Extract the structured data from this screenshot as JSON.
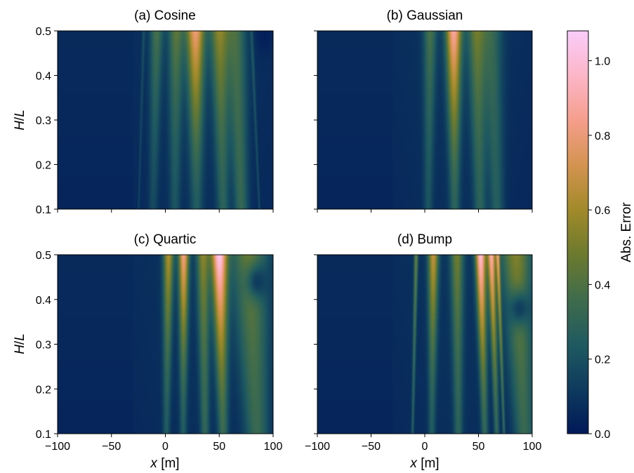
{
  "chart_data": [
    {
      "type": "heatmap",
      "title": "(a) Cosine",
      "x_ticks": [
        "−100",
        "−50",
        "0",
        "50",
        "100"
      ],
      "y_ticks": [
        "0.1",
        "0.2",
        "0.3",
        "0.4",
        "0.5"
      ],
      "xlim": [
        -100,
        100
      ],
      "ylim": [
        0.1,
        0.5
      ],
      "ylabel_var": "H",
      "ylabel_sep": "/",
      "ylabel_den": "L",
      "xlabel_var": "",
      "xlabel_unit": "",
      "bands": [
        {
          "x": -20,
          "w": 1.2,
          "top": 0.12,
          "bot": 0.08
        },
        {
          "x": -8,
          "w": 5,
          "top": 0.3,
          "bot": 0.12
        },
        {
          "x": 10,
          "w": 6,
          "top": 0.35,
          "bot": 0.15
        },
        {
          "x": 28,
          "w": 7,
          "top": 0.72,
          "bot": 0.18
        },
        {
          "x": 50,
          "w": 7,
          "top": 0.45,
          "bot": 0.22
        },
        {
          "x": 65,
          "w": 8,
          "top": 0.3,
          "bot": 0.26
        },
        {
          "x": 80,
          "w": 1.2,
          "top": 0.15,
          "bot": 0.12
        }
      ],
      "dark_spots": [
        {
          "x": 92,
          "y": 0.49,
          "r": 8
        }
      ]
    },
    {
      "type": "heatmap",
      "title": "(b) Gaussian",
      "x_ticks": [
        "−100",
        "−50",
        "0",
        "50",
        "100"
      ],
      "y_ticks": [],
      "xlim": [
        -100,
        100
      ],
      "ylim": [
        0.1,
        0.5
      ],
      "ylabel_var": "",
      "ylabel_sep": "",
      "ylabel_den": "",
      "xlabel_var": "",
      "xlabel_unit": "",
      "bands": [
        {
          "x": 5,
          "w": 5,
          "top": 0.3,
          "bot": 0.15
        },
        {
          "x": 27,
          "w": 6,
          "top": 0.8,
          "bot": 0.22
        },
        {
          "x": 48,
          "w": 7,
          "top": 0.38,
          "bot": 0.22
        },
        {
          "x": 62,
          "w": 8,
          "top": 0.25,
          "bot": 0.2
        }
      ],
      "dark_spots": []
    },
    {
      "type": "heatmap",
      "title": "(c) Quartic",
      "x_ticks": [
        "−100",
        "−50",
        "0",
        "50",
        "100"
      ],
      "y_ticks": [
        "0.1",
        "0.2",
        "0.3",
        "0.4",
        "0.5"
      ],
      "xlim": [
        -100,
        100
      ],
      "ylim": [
        0.1,
        0.5
      ],
      "ylabel_var": "H",
      "ylabel_sep": "/",
      "ylabel_den": "L",
      "xlabel_var": "x",
      "xlabel_unit": "[m]",
      "bands": [
        {
          "x": 3,
          "w": 4,
          "top": 0.55,
          "bot": 0.18
        },
        {
          "x": 17,
          "w": 4,
          "top": 0.75,
          "bot": 0.18
        },
        {
          "x": 35,
          "w": 5,
          "top": 0.45,
          "bot": 0.24
        },
        {
          "x": 50,
          "w": 6,
          "top": 0.95,
          "bot": 0.28
        },
        {
          "x": 78,
          "w": 14,
          "top": 0.4,
          "bot": 0.28
        }
      ],
      "dark_spots": [
        {
          "x": 85,
          "y": 0.44,
          "r": 10
        }
      ]
    },
    {
      "type": "heatmap",
      "title": "(d) Bump",
      "x_ticks": [
        "−100",
        "−50",
        "0",
        "50",
        "100"
      ],
      "y_ticks": [],
      "xlim": [
        -100,
        100
      ],
      "ylim": [
        0.1,
        0.5
      ],
      "ylabel_var": "",
      "ylabel_sep": "",
      "ylabel_den": "",
      "xlabel_var": "x",
      "xlabel_unit": "[m]",
      "bands": [
        {
          "x": -8,
          "w": 1.5,
          "top": 0.4,
          "bot": 0.2
        },
        {
          "x": 8,
          "w": 4,
          "top": 0.6,
          "bot": 0.18
        },
        {
          "x": 30,
          "w": 5,
          "top": 0.4,
          "bot": 0.22
        },
        {
          "x": 52,
          "w": 4,
          "top": 0.92,
          "bot": 0.25
        },
        {
          "x": 62,
          "w": 3,
          "top": 0.8,
          "bot": 0.25
        },
        {
          "x": 68,
          "w": 1.5,
          "top": 0.6,
          "bot": 0.25
        },
        {
          "x": 85,
          "w": 12,
          "top": 0.45,
          "bot": 0.28
        }
      ],
      "dark_spots": [
        {
          "x": 88,
          "y": 0.38,
          "r": 10
        }
      ]
    }
  ],
  "colorbar": {
    "label": "Abs. Error",
    "min": 0.0,
    "max": 1.08,
    "ticks": [
      0.0,
      0.2,
      0.4,
      0.6,
      0.8,
      1.0
    ],
    "tick_labels": [
      "0.0",
      "0.2",
      "0.4",
      "0.6",
      "0.8",
      "1.0"
    ],
    "colormap": "batlow",
    "stops": [
      "#011959",
      "#0e3b5e",
      "#1f5a60",
      "#3f6c4c",
      "#6c7a2e",
      "#a18a2a",
      "#d4934f",
      "#f59e8c",
      "#fcb6c8",
      "#faccfa"
    ]
  }
}
